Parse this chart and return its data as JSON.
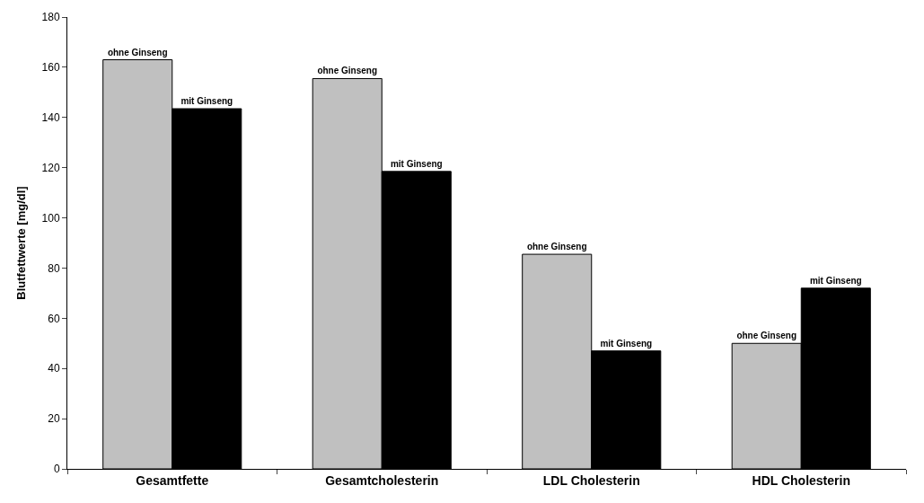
{
  "chart_data": {
    "type": "bar",
    "ylabel": "Blutfettwerte [mg/dl]",
    "categories": [
      "Gesamtfette",
      "Gesamtcholesterin",
      "LDL Cholesterin",
      "HDL Cholesterin"
    ],
    "series": [
      {
        "name": "ohne Ginseng",
        "color": "#c0c0c0",
        "values": [
          163,
          155.5,
          85.5,
          50
        ]
      },
      {
        "name": "mit Ginseng",
        "color": "#000000",
        "values": [
          143.5,
          118.5,
          47,
          72
        ]
      }
    ],
    "ylim": [
      0,
      180
    ],
    "yticks": [
      0,
      20,
      40,
      60,
      80,
      100,
      120,
      140,
      160,
      180
    ],
    "legend": false
  }
}
